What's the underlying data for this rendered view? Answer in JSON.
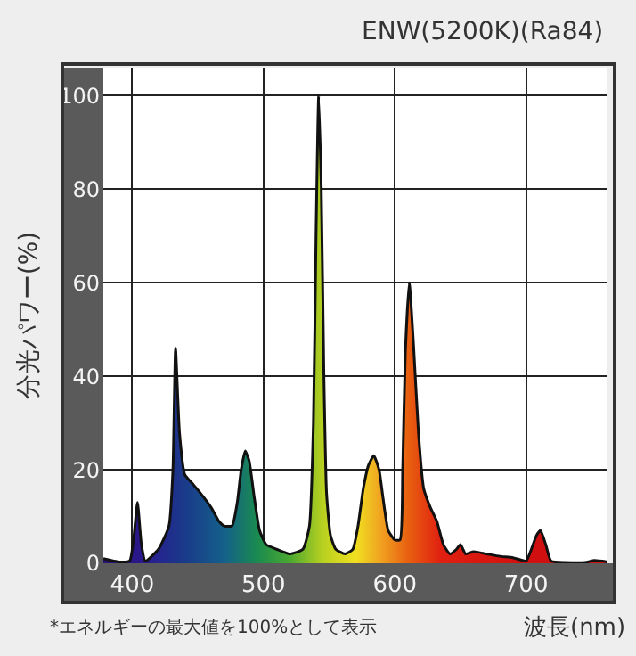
{
  "chart_data": {
    "type": "area",
    "title": "ENW(5200K)(Ra84)",
    "xlabel": "波長(nm)",
    "ylabel": "分光パワー(%)",
    "annotations": [
      "*エネルギーの最大値を100%として表示"
    ],
    "xlim": [
      378,
      762
    ],
    "xticks": [
      400,
      500,
      600,
      700
    ],
    "ylim": [
      0,
      106
    ],
    "yticks": [
      0,
      20,
      40,
      60,
      80,
      100
    ],
    "grid": true,
    "x": [
      378,
      390,
      398,
      401,
      404,
      407,
      410,
      420,
      428,
      431,
      433,
      436,
      440,
      446,
      452,
      460,
      466,
      470,
      476,
      480,
      483,
      486,
      489,
      493,
      497,
      502,
      510,
      520,
      530,
      535,
      538,
      540,
      542,
      544,
      546,
      548,
      551,
      555,
      562,
      568,
      572,
      576,
      580,
      584,
      588,
      591,
      595,
      600,
      604,
      606,
      608,
      611,
      614,
      618,
      622,
      627,
      632,
      637,
      642,
      647,
      650,
      654,
      660,
      670,
      680,
      690,
      700,
      704,
      708,
      711,
      715,
      719,
      730,
      745,
      752,
      762
    ],
    "series": [
      {
        "color": "#111111",
        "values": [
          1,
          0.3,
          0.5,
          5,
          13,
          4,
          0.5,
          3,
          8,
          20,
          46,
          28,
          19,
          17,
          15,
          12,
          9,
          8,
          8,
          13,
          20,
          24,
          22,
          14,
          7,
          4,
          3,
          2,
          3,
          8,
          30,
          70,
          100,
          80,
          40,
          15,
          6,
          3,
          2,
          3,
          8,
          16,
          21,
          23,
          20,
          14,
          7,
          5,
          5,
          20,
          45,
          60,
          48,
          28,
          16,
          12,
          9,
          4,
          2,
          3,
          4,
          2,
          2.5,
          2,
          1.5,
          1.2,
          0.5,
          3,
          6,
          7,
          4,
          0.5,
          0.2,
          0.2,
          0.6,
          0.3
        ]
      }
    ]
  }
}
